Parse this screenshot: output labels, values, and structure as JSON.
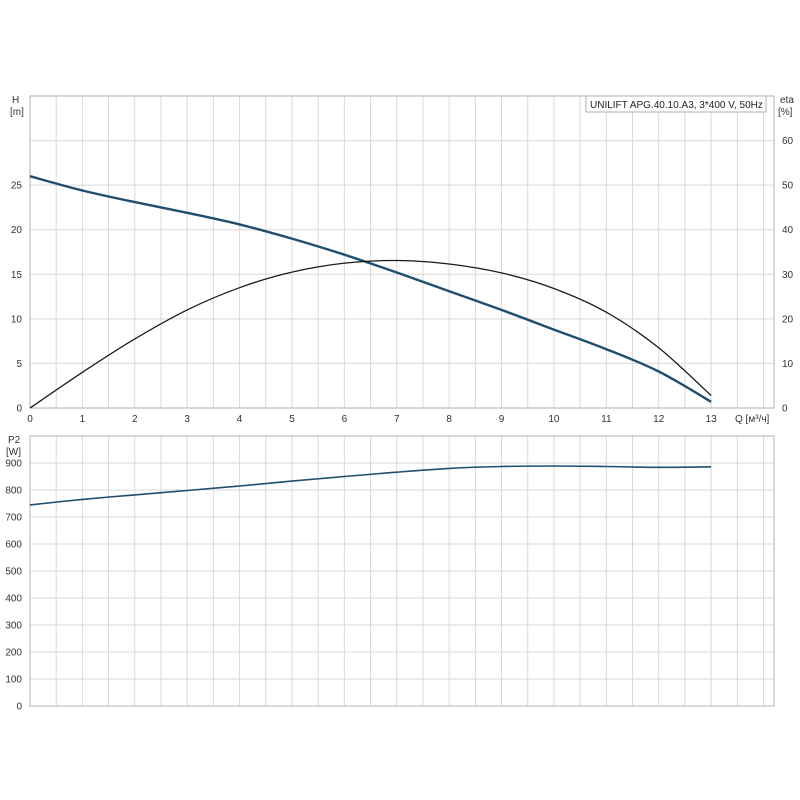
{
  "chart_data": [
    {
      "type": "line",
      "legend_box": "UNILIFT APG.40.10.A3, 3*400  V, 50Hz",
      "legend_placement": "top-right",
      "ylabel_left_lines": [
        "H",
        "[m]"
      ],
      "ylabel_right_lines": [
        "eta",
        "[%]"
      ],
      "xlabel": "Q [м³/ч]",
      "xlim": [
        0,
        14.2
      ],
      "ylim": [
        0,
        35
      ],
      "y2lim": [
        0,
        70
      ],
      "xticks": [
        0,
        1,
        2,
        3,
        4,
        5,
        6,
        7,
        8,
        9,
        10,
        11,
        12,
        13
      ],
      "yticks": [
        0,
        5,
        10,
        15,
        20,
        25
      ],
      "y2ticks": [
        0,
        10,
        20,
        30,
        40,
        50,
        60
      ],
      "grid": true,
      "series": [
        {
          "key": "head",
          "axis": "left",
          "color": "#1f4e6e",
          "x": [
            0,
            1,
            2,
            3,
            4,
            5,
            6,
            7,
            8,
            9,
            10,
            11,
            12,
            13
          ],
          "y": [
            26.0,
            24.4,
            23.1,
            21.9,
            20.6,
            19.0,
            17.2,
            15.2,
            13.1,
            11.0,
            8.8,
            6.6,
            4.1,
            0.7
          ]
        },
        {
          "key": "eta",
          "axis": "right",
          "color": "#1a1a1a",
          "x": [
            0,
            1,
            2,
            3,
            4,
            5,
            6,
            7,
            8,
            9,
            10,
            11,
            12,
            13
          ],
          "y": [
            0,
            8.0,
            15.5,
            22.0,
            27.0,
            30.5,
            32.5,
            33.1,
            32.3,
            30.3,
            26.8,
            21.5,
            13.5,
            2.8
          ]
        }
      ]
    },
    {
      "type": "line",
      "ylabel_lines": [
        "P2",
        "[W]"
      ],
      "xlim": [
        0,
        14.2
      ],
      "ylim": [
        0,
        1000
      ],
      "yticks": [
        0,
        100,
        200,
        300,
        400,
        500,
        600,
        700,
        800,
        900
      ],
      "grid": true,
      "series": [
        {
          "key": "p2",
          "color": "#1f4e6e",
          "x": [
            0,
            1,
            2,
            3,
            4,
            5,
            6,
            7,
            8,
            9,
            10,
            11,
            12,
            13
          ],
          "y": [
            745,
            765,
            782,
            798,
            815,
            833,
            850,
            866,
            880,
            887,
            889,
            887,
            884,
            886
          ]
        }
      ]
    }
  ]
}
